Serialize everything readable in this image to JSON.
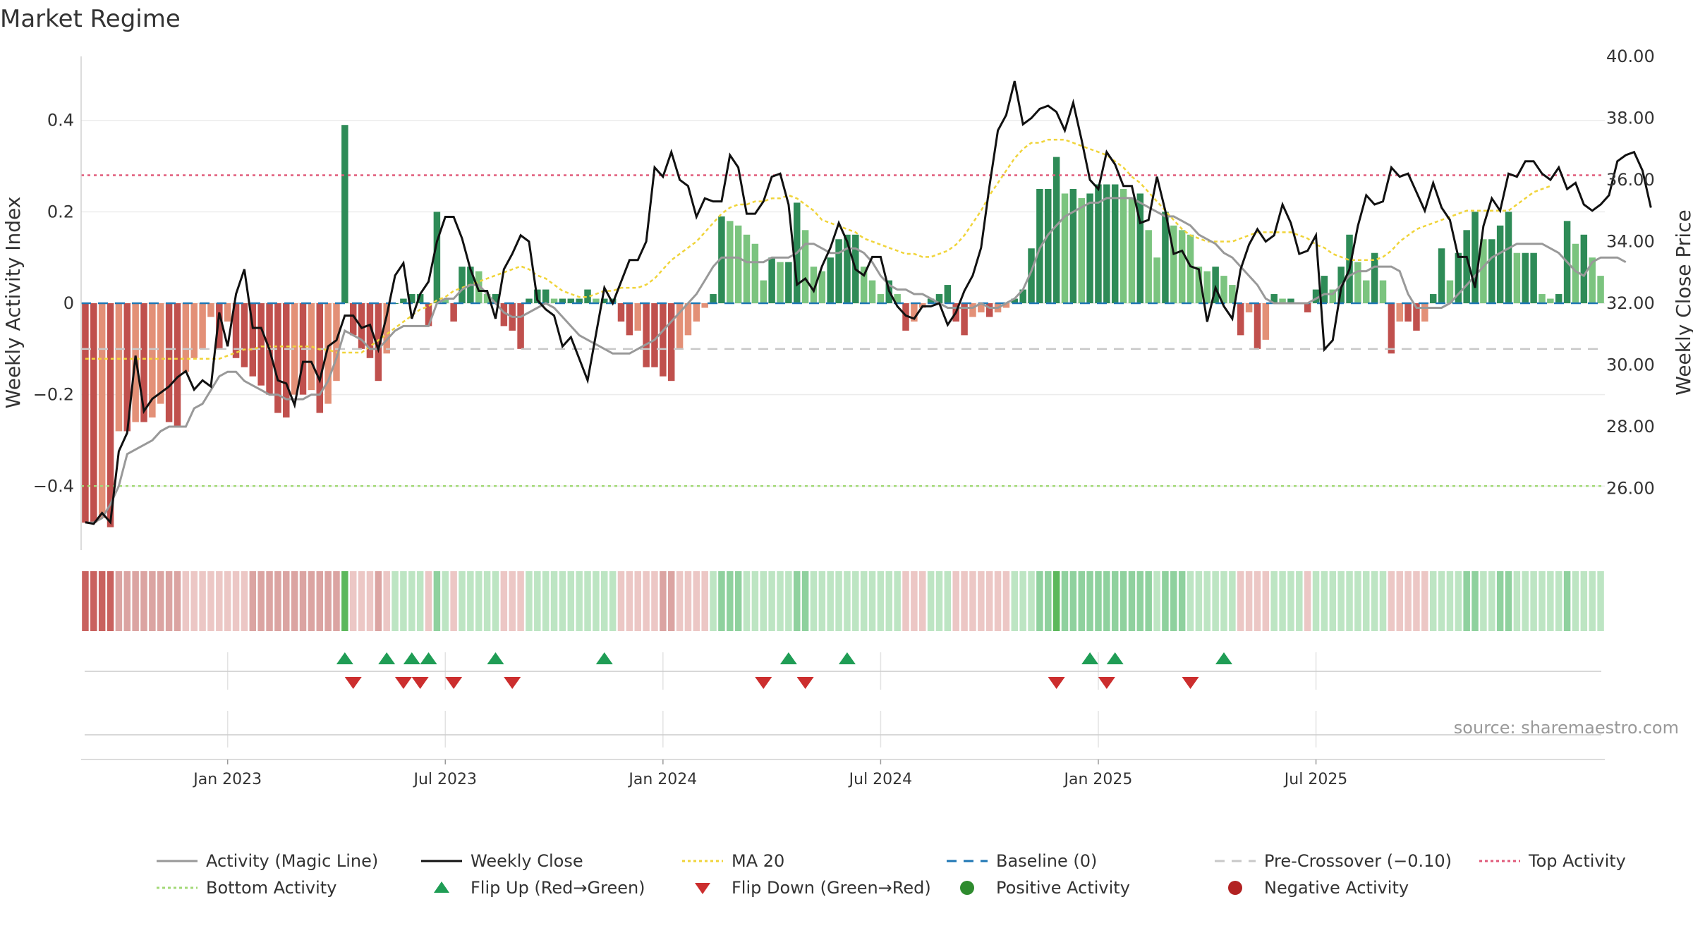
{
  "chart_data": {
    "type": "bar",
    "title": "Market Regime",
    "watermark": "source: sharemaestro.com",
    "y_left": {
      "label": "Weekly Activity Index",
      "ylim": [
        -0.54,
        0.54
      ],
      "ticks": [
        -0.4,
        -0.2,
        0,
        0.2,
        0.4
      ],
      "tick_labels": [
        "−0.4",
        "−0.2",
        "0",
        "0.2",
        "0.4"
      ]
    },
    "y_right": {
      "label": "Weekly Close Price",
      "ylim": [
        24.0,
        40.0
      ],
      "ticks": [
        26,
        28,
        30,
        32,
        34,
        36,
        38,
        40
      ],
      "tick_labels": [
        "26.00",
        "28.00",
        "30.00",
        "32.00",
        "34.00",
        "36.00",
        "38.00",
        "40.00"
      ]
    },
    "x_ticks": [
      "Jan 2023",
      "Jul 2023",
      "Jan 2024",
      "Jul 2024",
      "Jan 2025",
      "Jul 2025"
    ],
    "x_tick_weeks": [
      17,
      43,
      69,
      95,
      121,
      147
    ],
    "reference_lines": {
      "baseline": 0,
      "pre_crossover": -0.1,
      "top_activity": 0.28,
      "bottom_activity": -0.4
    },
    "colors": {
      "dark_red": "#c0504d",
      "light_red": "#e39077",
      "dark_green": "#2e8b57",
      "light_green": "#7bc47f",
      "close": "#111111",
      "magic": "#999999",
      "ma20": "#f0d43a",
      "baseline": "#1f77b4",
      "pre_crossover": "#c8c8c8",
      "top": "#e05a7a",
      "bottom": "#a3d977",
      "flip_up": "#1f9d55",
      "flip_down": "#cc2e2e"
    },
    "activity": [
      -0.48,
      -0.48,
      -0.47,
      -0.49,
      -0.28,
      -0.28,
      -0.26,
      -0.26,
      -0.25,
      -0.22,
      -0.26,
      -0.27,
      -0.15,
      -0.12,
      -0.1,
      -0.03,
      -0.1,
      -0.04,
      -0.12,
      -0.14,
      -0.16,
      -0.18,
      -0.2,
      -0.24,
      -0.25,
      -0.2,
      -0.2,
      -0.19,
      -0.24,
      -0.22,
      -0.17,
      0.39,
      -0.07,
      -0.1,
      -0.12,
      -0.17,
      -0.11,
      0.0,
      0.01,
      0.02,
      0.02,
      -0.05,
      0.2,
      0.01,
      -0.04,
      0.08,
      0.08,
      0.07,
      0.02,
      0.02,
      -0.05,
      -0.06,
      -0.1,
      0.01,
      0.03,
      0.03,
      0.01,
      0.01,
      0.01,
      0.01,
      0.03,
      0.01,
      0.01,
      0.01,
      -0.04,
      -0.07,
      -0.06,
      -0.14,
      -0.14,
      -0.16,
      -0.17,
      -0.1,
      -0.07,
      -0.04,
      -0.01,
      0.02,
      0.19,
      0.18,
      0.17,
      0.15,
      0.13,
      0.05,
      0.1,
      0.09,
      0.09,
      0.22,
      0.16,
      0.08,
      0.07,
      0.1,
      0.14,
      0.15,
      0.15,
      0.08,
      0.05,
      0.02,
      0.05,
      0.02,
      -0.06,
      -0.04,
      -0.01,
      0.01,
      0.02,
      0.04,
      -0.04,
      -0.07,
      -0.03,
      -0.02,
      -0.03,
      -0.02,
      -0.01,
      0.01,
      0.03,
      0.12,
      0.25,
      0.25,
      0.32,
      0.24,
      0.25,
      0.23,
      0.24,
      0.26,
      0.26,
      0.26,
      0.25,
      0.23,
      0.24,
      0.16,
      0.1,
      0.2,
      0.17,
      0.16,
      0.15,
      0.08,
      0.07,
      0.08,
      0.06,
      0.04,
      -0.07,
      -0.02,
      -0.1,
      -0.08,
      0.02,
      0.01,
      0.01,
      0.0,
      -0.02,
      0.03,
      0.06,
      0.03,
      0.08,
      0.15,
      0.09,
      0.05,
      0.11,
      0.05,
      -0.11,
      -0.04,
      -0.04,
      -0.06,
      -0.04,
      0.02,
      0.12,
      0.05,
      0.11,
      0.16,
      0.2,
      0.14,
      0.14,
      0.17,
      0.2,
      0.11,
      0.11,
      0.11,
      0.02,
      0.01,
      0.02,
      0.18,
      0.13,
      0.15,
      0.1,
      0.06
    ],
    "magic_line": [
      -0.48,
      -0.48,
      -0.47,
      -0.44,
      -0.4,
      -0.33,
      -0.32,
      -0.31,
      -0.3,
      -0.28,
      -0.27,
      -0.27,
      -0.27,
      -0.23,
      -0.22,
      -0.19,
      -0.16,
      -0.15,
      -0.15,
      -0.17,
      -0.18,
      -0.19,
      -0.2,
      -0.2,
      -0.21,
      -0.21,
      -0.21,
      -0.2,
      -0.2,
      -0.17,
      -0.12,
      -0.06,
      -0.07,
      -0.08,
      -0.1,
      -0.1,
      -0.08,
      -0.06,
      -0.05,
      -0.05,
      -0.05,
      -0.05,
      0.0,
      0.01,
      0.01,
      0.03,
      0.04,
      0.04,
      0.02,
      0.0,
      -0.02,
      -0.03,
      -0.03,
      -0.02,
      -0.01,
      0.0,
      -0.01,
      -0.03,
      -0.05,
      -0.07,
      -0.08,
      -0.09,
      -0.1,
      -0.11,
      -0.11,
      -0.11,
      -0.1,
      -0.09,
      -0.08,
      -0.06,
      -0.04,
      -0.02,
      0.0,
      0.02,
      0.05,
      0.08,
      0.1,
      0.1,
      0.1,
      0.09,
      0.09,
      0.09,
      0.1,
      0.1,
      0.1,
      0.11,
      0.13,
      0.13,
      0.12,
      0.11,
      0.11,
      0.12,
      0.12,
      0.11,
      0.09,
      0.06,
      0.04,
      0.03,
      0.03,
      0.02,
      0.02,
      0.01,
      0.0,
      -0.01,
      -0.01,
      -0.01,
      -0.01,
      0.0,
      -0.01,
      -0.01,
      0.0,
      0.01,
      0.03,
      0.07,
      0.12,
      0.15,
      0.17,
      0.19,
      0.2,
      0.21,
      0.22,
      0.22,
      0.23,
      0.23,
      0.23,
      0.23,
      0.22,
      0.21,
      0.2,
      0.19,
      0.19,
      0.18,
      0.17,
      0.15,
      0.14,
      0.13,
      0.11,
      0.1,
      0.08,
      0.06,
      0.04,
      0.01,
      0.0,
      0.0,
      0.0,
      0.0,
      0.0,
      0.01,
      0.02,
      0.02,
      0.04,
      0.06,
      0.07,
      0.07,
      0.08,
      0.08,
      0.08,
      0.07,
      0.02,
      -0.01,
      -0.01,
      -0.01,
      -0.01,
      0.0,
      0.02,
      0.04,
      0.06,
      0.08,
      0.1,
      0.11,
      0.12,
      0.13,
      0.13,
      0.13,
      0.13,
      0.12,
      0.11,
      0.09,
      0.07,
      0.06,
      0.09,
      0.1,
      0.1,
      0.1,
      0.09
    ],
    "weekly_close": [
      24.9,
      24.85,
      25.2,
      24.9,
      27.2,
      27.8,
      30.3,
      28.5,
      28.9,
      29.1,
      29.3,
      29.6,
      29.8,
      29.2,
      29.5,
      29.3,
      31.7,
      30.6,
      32.3,
      33.1,
      31.2,
      31.2,
      30.5,
      29.5,
      29.4,
      28.7,
      30.1,
      30.1,
      29.5,
      30.6,
      30.8,
      31.6,
      31.6,
      31.2,
      31.3,
      30.5,
      31.6,
      32.9,
      33.3,
      31.5,
      32.3,
      32.7,
      34.0,
      34.8,
      34.8,
      34.1,
      33.1,
      32.4,
      32.4,
      31.5,
      33.1,
      33.6,
      34.2,
      34.0,
      32.1,
      31.8,
      31.6,
      30.6,
      30.9,
      30.2,
      29.5,
      31.0,
      32.5,
      32.0,
      32.7,
      33.4,
      33.4,
      34.0,
      36.4,
      36.1,
      36.9,
      36.0,
      35.8,
      34.8,
      35.4,
      35.3,
      35.3,
      36.8,
      36.4,
      34.9,
      34.9,
      35.3,
      36.1,
      36.2,
      35.2,
      32.6,
      32.8,
      32.4,
      33.2,
      33.8,
      34.6,
      34.0,
      33.1,
      32.9,
      33.5,
      33.5,
      32.4,
      31.9,
      31.6,
      31.5,
      31.9,
      31.9,
      32.0,
      31.3,
      31.7,
      32.4,
      32.9,
      33.8,
      35.8,
      37.6,
      38.1,
      39.2,
      37.8,
      38.0,
      38.3,
      38.4,
      38.2,
      37.6,
      38.5,
      37.3,
      36.0,
      35.7,
      36.9,
      36.5,
      35.8,
      35.8,
      34.6,
      34.7,
      36.1,
      35.0,
      33.6,
      33.7,
      33.2,
      33.1,
      31.4,
      32.5,
      31.9,
      31.5,
      33.1,
      33.9,
      34.4,
      34.0,
      34.2,
      35.2,
      34.6,
      33.6,
      33.7,
      34.2,
      30.5,
      30.8,
      32.5,
      33.1,
      34.5,
      35.5,
      35.2,
      35.3,
      36.4,
      36.1,
      36.2,
      35.6,
      35.0,
      35.9,
      35.1,
      34.7,
      33.5,
      33.5,
      32.5,
      34.5,
      35.4,
      35.0,
      36.2,
      36.1,
      36.6,
      36.6,
      36.2,
      36.0,
      36.4,
      35.7,
      35.9,
      35.2,
      35.0,
      35.2,
      35.5,
      36.6,
      36.8,
      36.9,
      36.3,
      35.1
    ],
    "ma20": [
      30.2,
      30.2,
      30.2,
      30.2,
      30.2,
      30.2,
      30.2,
      30.2,
      30.2,
      30.2,
      30.2,
      30.2,
      30.2,
      30.2,
      30.2,
      30.2,
      30.2,
      30.3,
      30.4,
      30.5,
      30.5,
      30.6,
      30.6,
      30.6,
      30.6,
      30.6,
      30.6,
      30.6,
      30.5,
      30.5,
      30.4,
      30.4,
      30.4,
      30.4,
      30.6,
      30.8,
      31.0,
      31.2,
      31.4,
      31.6,
      31.8,
      31.9,
      32.1,
      32.2,
      32.4,
      32.5,
      32.6,
      32.7,
      32.8,
      32.9,
      33.0,
      33.1,
      33.2,
      33.1,
      32.9,
      32.8,
      32.6,
      32.4,
      32.3,
      32.2,
      32.2,
      32.3,
      32.4,
      32.4,
      32.5,
      32.5,
      32.5,
      32.6,
      32.8,
      33.1,
      33.4,
      33.6,
      33.8,
      34.0,
      34.3,
      34.6,
      34.9,
      35.1,
      35.2,
      35.2,
      35.3,
      35.3,
      35.4,
      35.4,
      35.5,
      35.4,
      35.2,
      35.0,
      34.7,
      34.6,
      34.5,
      34.4,
      34.3,
      34.1,
      34.0,
      33.9,
      33.8,
      33.7,
      33.6,
      33.6,
      33.5,
      33.5,
      33.6,
      33.7,
      33.9,
      34.2,
      34.6,
      35.0,
      35.5,
      35.9,
      36.3,
      36.7,
      37.0,
      37.2,
      37.2,
      37.3,
      37.3,
      37.3,
      37.2,
      37.1,
      37.0,
      36.9,
      36.8,
      36.6,
      36.4,
      36.1,
      35.9,
      35.6,
      35.3,
      35.0,
      34.7,
      34.4,
      34.2,
      34.1,
      34.0,
      34.0,
      34.0,
      34.0,
      34.1,
      34.2,
      34.3,
      34.3,
      34.3,
      34.3,
      34.3,
      34.2,
      34.1,
      33.9,
      33.8,
      33.6,
      33.5,
      33.4,
      33.4,
      33.4,
      33.4,
      33.5,
      33.7,
      34.0,
      34.2,
      34.4,
      34.5,
      34.6,
      34.7,
      34.8,
      34.9,
      35.0,
      35.0,
      35.0,
      35.0,
      35.0,
      35.0,
      35.2,
      35.4,
      35.6,
      35.7,
      35.8
    ],
    "flip_up_weeks": [
      31,
      36,
      39,
      41,
      49,
      62,
      84,
      91,
      120,
      123,
      136
    ],
    "flip_down_weeks": [
      32,
      38,
      40,
      44,
      51,
      81,
      86,
      116,
      122,
      132
    ],
    "legend": [
      {
        "label": "Activity (Magic Line)",
        "icon": "solid-line",
        "color": "#999999"
      },
      {
        "label": "Weekly Close",
        "icon": "solid-line",
        "color": "#111111"
      },
      {
        "label": "MA 20",
        "icon": "dotted-line",
        "color": "#f0d43a"
      },
      {
        "label": "Baseline (0)",
        "icon": "dashed-line",
        "color": "#1f77b4"
      },
      {
        "label": "Pre-Crossover (−0.10)",
        "icon": "dashed-line",
        "color": "#c8c8c8"
      },
      {
        "label": "Top Activity",
        "icon": "dotted-line",
        "color": "#e05a7a"
      },
      {
        "label": "Bottom Activity",
        "icon": "dotted-line",
        "color": "#a3d977"
      },
      {
        "label": "Flip Up (Red→Green)",
        "icon": "triangle-up",
        "color": "#1f9d55"
      },
      {
        "label": "Flip Down (Green→Red)",
        "icon": "triangle-down",
        "color": "#cc2e2e"
      },
      {
        "label": "Positive Activity",
        "icon": "circle",
        "color": "#2e8b2e"
      },
      {
        "label": "Negative Activity",
        "icon": "circle",
        "color": "#b22222"
      }
    ]
  }
}
